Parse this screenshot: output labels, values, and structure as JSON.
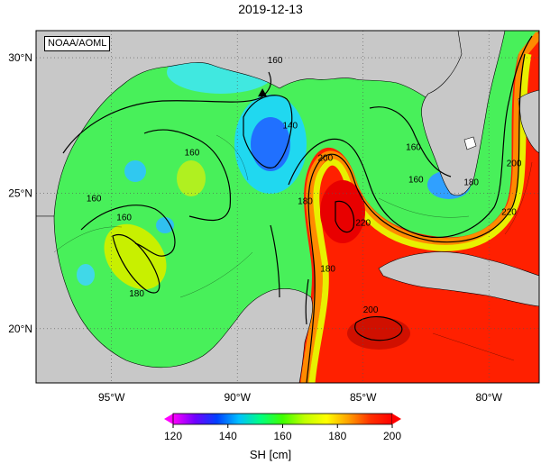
{
  "title": "2019-12-13",
  "credit": "NOAA/AOML",
  "axes": {
    "lat_labels": [
      "30°N",
      "25°N",
      "20°N"
    ],
    "lon_labels": [
      "95°W",
      "90°W",
      "85°W",
      "80°W"
    ],
    "lat_values": [
      30,
      25,
      20
    ],
    "lon_values": [
      -95,
      -90,
      -85,
      -80
    ],
    "lon_range": [
      -98,
      -78
    ],
    "lat_range": [
      18,
      31
    ]
  },
  "contour_labels": [
    {
      "text": "160",
      "lon": -88.5,
      "lat": 29.8
    },
    {
      "text": "140",
      "lon": -87.9,
      "lat": 27.4
    },
    {
      "text": "160",
      "lon": -91.8,
      "lat": 26.4
    },
    {
      "text": "200",
      "lon": -86.5,
      "lat": 26.2
    },
    {
      "text": "180",
      "lon": -87.3,
      "lat": 24.6
    },
    {
      "text": "160",
      "lon": -95.7,
      "lat": 24.7
    },
    {
      "text": "160",
      "lon": -94.5,
      "lat": 24.0
    },
    {
      "text": "180",
      "lon": -94.0,
      "lat": 21.2
    },
    {
      "text": "220",
      "lon": -85.0,
      "lat": 23.8
    },
    {
      "text": "160",
      "lon": -83.0,
      "lat": 26.6
    },
    {
      "text": "160",
      "lon": -82.9,
      "lat": 25.4
    },
    {
      "text": "180",
      "lon": -80.7,
      "lat": 25.3
    },
    {
      "text": "200",
      "lon": -79.0,
      "lat": 26.0
    },
    {
      "text": "220",
      "lon": -79.2,
      "lat": 24.2
    },
    {
      "text": "180",
      "lon": -86.4,
      "lat": 22.1
    },
    {
      "text": "200",
      "lon": -84.7,
      "lat": 20.6
    }
  ],
  "marker": {
    "lon": -89.0,
    "lat": 28.7,
    "shape": "triangle"
  },
  "colorbar": {
    "min": 120,
    "max": 200,
    "ticks": [
      "120",
      "140",
      "160",
      "180",
      "200"
    ],
    "label": "SH [cm]",
    "colors": [
      "#ff00ff",
      "#7000ff",
      "#0040ff",
      "#00c0ff",
      "#00ff80",
      "#40ff00",
      "#c0ff00",
      "#ffff00",
      "#ffa000",
      "#ff3000",
      "#ff0000"
    ]
  },
  "colors": {
    "land": "#c8c8c8",
    "frame": "#000000",
    "grid": "#555555"
  }
}
